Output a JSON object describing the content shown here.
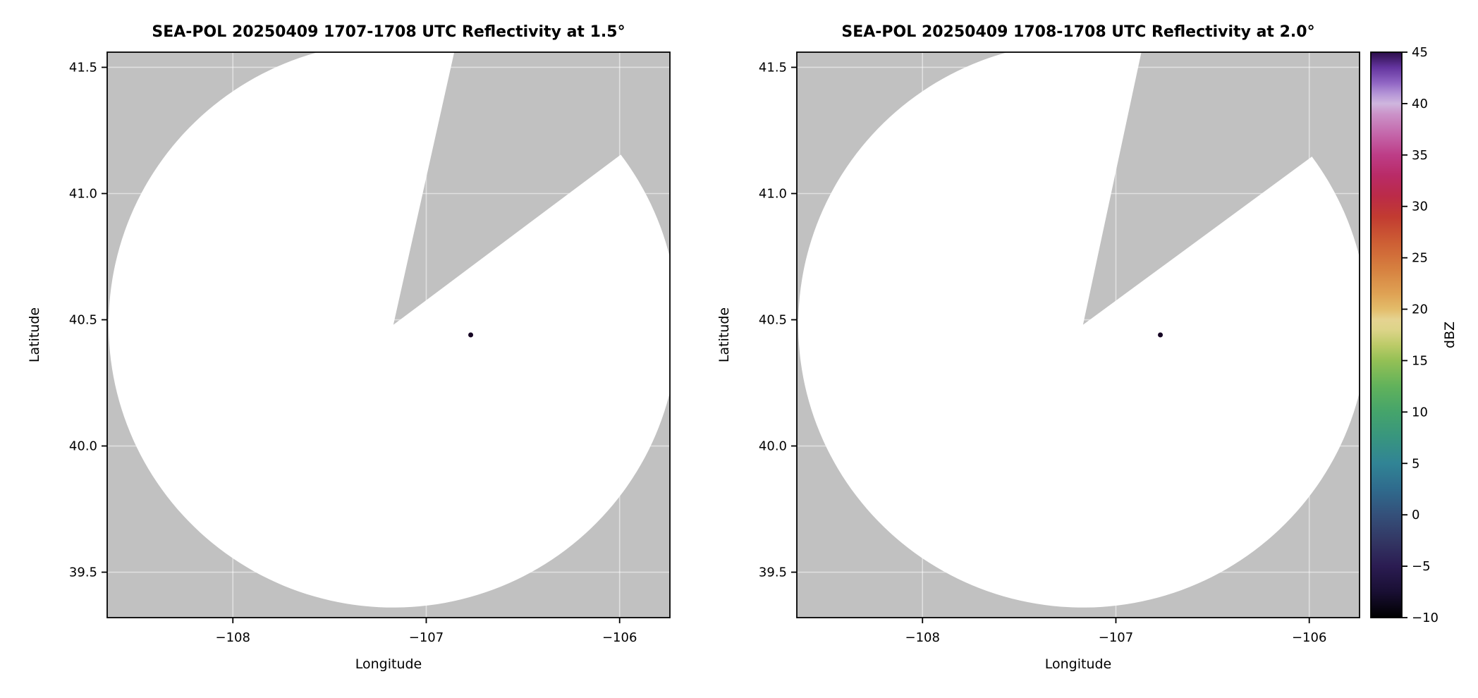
{
  "figure": {
    "background": "#ffffff"
  },
  "chart_data": {
    "type": "heatmap",
    "description": "Two radar PPI reflectivity coverage plots (SEA-POL) sharing one vertical dBZ colorbar; coverage circle is white on gray background with a missing wedge sector to the north-northeast and one tiny dark echo near the radar.",
    "plots": [
      {
        "title": "SEA-POL 20250409 1707-1708 UTC Reflectivity at 1.5°",
        "xlabel": "Longitude",
        "ylabel": "Latitude",
        "xlim": [
          -108.65,
          -105.74
        ],
        "ylim": [
          39.32,
          41.56
        ],
        "xtick_values": [
          -108,
          -107,
          -106
        ],
        "xtick_labels": [
          "−108",
          "−107",
          "−106"
        ],
        "ytick_values": [
          39.5,
          40.0,
          40.5,
          41.0,
          41.5
        ],
        "ytick_labels": [
          "39.5",
          "40.0",
          "40.5",
          "41.0",
          "41.5"
        ],
        "plot_bg_color": "#c1c1c1",
        "coverage_color": "#ffffff",
        "grid_color": "rgba(255,255,255,0.5)",
        "radar_center": {
          "lon": -107.17,
          "lat": 40.48
        },
        "coverage_radius_deg_lat": 1.12,
        "missing_sector_azimuth_deg": [
          12.5,
          53.0
        ],
        "echoes": [
          {
            "lon": -106.77,
            "lat": 40.44,
            "dbz": 45,
            "color": "#150423"
          }
        ]
      },
      {
        "title": "SEA-POL 20250409 1708-1708 UTC Reflectivity at 2.0°",
        "xlabel": "Longitude",
        "ylabel": "Latitude",
        "xlim": [
          -108.65,
          -105.74
        ],
        "ylim": [
          39.32,
          41.56
        ],
        "xtick_values": [
          -108,
          -107,
          -106
        ],
        "xtick_labels": [
          "−108",
          "−107",
          "−106"
        ],
        "ytick_values": [
          39.5,
          40.0,
          40.5,
          41.0,
          41.5
        ],
        "ytick_labels": [
          "39.5",
          "40.0",
          "40.5",
          "41.0",
          "41.5"
        ],
        "plot_bg_color": "#c1c1c1",
        "coverage_color": "#ffffff",
        "grid_color": "rgba(255,255,255,0.5)",
        "radar_center": {
          "lon": -107.17,
          "lat": 40.48
        },
        "coverage_radius_deg_lat": 1.12,
        "missing_sector_azimuth_deg": [
          12.0,
          53.5
        ],
        "echoes": [
          {
            "lon": -106.77,
            "lat": 40.44,
            "dbz": 45,
            "color": "#150423"
          }
        ]
      }
    ],
    "colorbar": {
      "label": "dBZ",
      "min": -10,
      "max": 45,
      "tick_values": [
        45,
        40,
        35,
        30,
        25,
        20,
        15,
        10,
        5,
        0,
        -5,
        -10
      ],
      "tick_labels": [
        "45",
        "40",
        "35",
        "30",
        "25",
        "20",
        "15",
        "10",
        "5",
        "0",
        "−5",
        "−10"
      ],
      "stops": [
        {
          "value": -10,
          "color": "#000000"
        },
        {
          "value": -7.5,
          "color": "#190f33"
        },
        {
          "value": -5,
          "color": "#2b1c52"
        },
        {
          "value": -2.5,
          "color": "#333764"
        },
        {
          "value": 0,
          "color": "#34507a"
        },
        {
          "value": 2.5,
          "color": "#2f6b8d"
        },
        {
          "value": 5,
          "color": "#318495"
        },
        {
          "value": 7.5,
          "color": "#38957f"
        },
        {
          "value": 10,
          "color": "#45a46b"
        },
        {
          "value": 12.5,
          "color": "#61b25b"
        },
        {
          "value": 15,
          "color": "#94c055"
        },
        {
          "value": 16.5,
          "color": "#bccb68"
        },
        {
          "value": 18,
          "color": "#ddd489"
        },
        {
          "value": 19,
          "color": "#e5d391"
        },
        {
          "value": 20,
          "color": "#e3bc6a"
        },
        {
          "value": 21.5,
          "color": "#dfa254"
        },
        {
          "value": 24,
          "color": "#d67f3f"
        },
        {
          "value": 26.5,
          "color": "#cd5e34"
        },
        {
          "value": 29,
          "color": "#c23b31"
        },
        {
          "value": 31,
          "color": "#bb2b48"
        },
        {
          "value": 33,
          "color": "#b92b67"
        },
        {
          "value": 35,
          "color": "#bd3d87"
        },
        {
          "value": 37,
          "color": "#c466aa"
        },
        {
          "value": 39,
          "color": "#cb93c9"
        },
        {
          "value": 40,
          "color": "#cfb6de"
        },
        {
          "value": 41,
          "color": "#b393d6"
        },
        {
          "value": 42,
          "color": "#9166c4"
        },
        {
          "value": 43.5,
          "color": "#64359f"
        },
        {
          "value": 45,
          "color": "#2c0d4a"
        }
      ]
    }
  }
}
